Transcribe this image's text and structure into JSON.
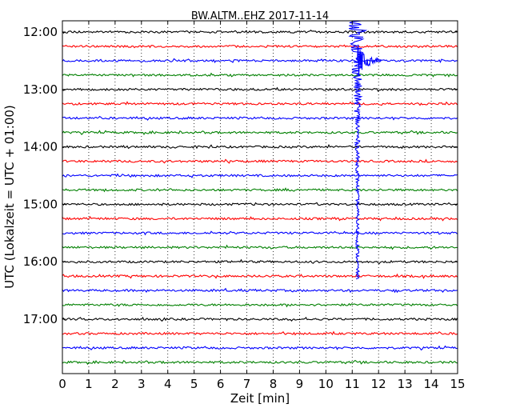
{
  "chart_data": {
    "type": "line",
    "title": "BW.ALTM..EHZ 2017-11-14",
    "xlabel": "Zeit  [min]",
    "ylabel": "UTC (Lokalzeit = UTC + 01:00)",
    "xlim": [
      0,
      15
    ],
    "x_ticks": [
      "0",
      "1",
      "2",
      "3",
      "4",
      "5",
      "6",
      "7",
      "8",
      "9",
      "10",
      "11",
      "12",
      "13",
      "14",
      "15"
    ],
    "y_tick_labels": [
      "12:00",
      "13:00",
      "14:00",
      "15:00",
      "16:00",
      "17:00"
    ],
    "y_tick_rows": [
      0,
      4,
      8,
      12,
      16,
      20
    ],
    "grid": "vertical dotted",
    "colors_cycle": [
      "#000000",
      "#ff0000",
      "#0000ff",
      "#008000"
    ],
    "traces": [
      {
        "start": "12:00",
        "color": "#000000"
      },
      {
        "start": "12:15",
        "color": "#ff0000"
      },
      {
        "start": "12:30",
        "color": "#0000ff"
      },
      {
        "start": "12:45",
        "color": "#008000"
      },
      {
        "start": "13:00",
        "color": "#000000"
      },
      {
        "start": "13:15",
        "color": "#ff0000"
      },
      {
        "start": "13:30",
        "color": "#0000ff"
      },
      {
        "start": "13:45",
        "color": "#008000"
      },
      {
        "start": "14:00",
        "color": "#000000"
      },
      {
        "start": "14:15",
        "color": "#ff0000"
      },
      {
        "start": "14:30",
        "color": "#0000ff"
      },
      {
        "start": "14:45",
        "color": "#008000"
      },
      {
        "start": "15:00",
        "color": "#000000"
      },
      {
        "start": "15:15",
        "color": "#ff0000"
      },
      {
        "start": "15:30",
        "color": "#0000ff"
      },
      {
        "start": "15:45",
        "color": "#008000"
      },
      {
        "start": "16:00",
        "color": "#000000"
      },
      {
        "start": "16:15",
        "color": "#ff0000"
      },
      {
        "start": "16:30",
        "color": "#0000ff"
      },
      {
        "start": "16:45",
        "color": "#008000"
      },
      {
        "start": "17:00",
        "color": "#000000"
      },
      {
        "start": "17:15",
        "color": "#ff0000"
      },
      {
        "start": "17:30",
        "color": "#0000ff"
      },
      {
        "start": "17:45",
        "color": "#008000"
      }
    ],
    "event": {
      "minute": 11.2,
      "start_trace": 0,
      "end_trace": 17,
      "color": "#0000ff"
    }
  }
}
